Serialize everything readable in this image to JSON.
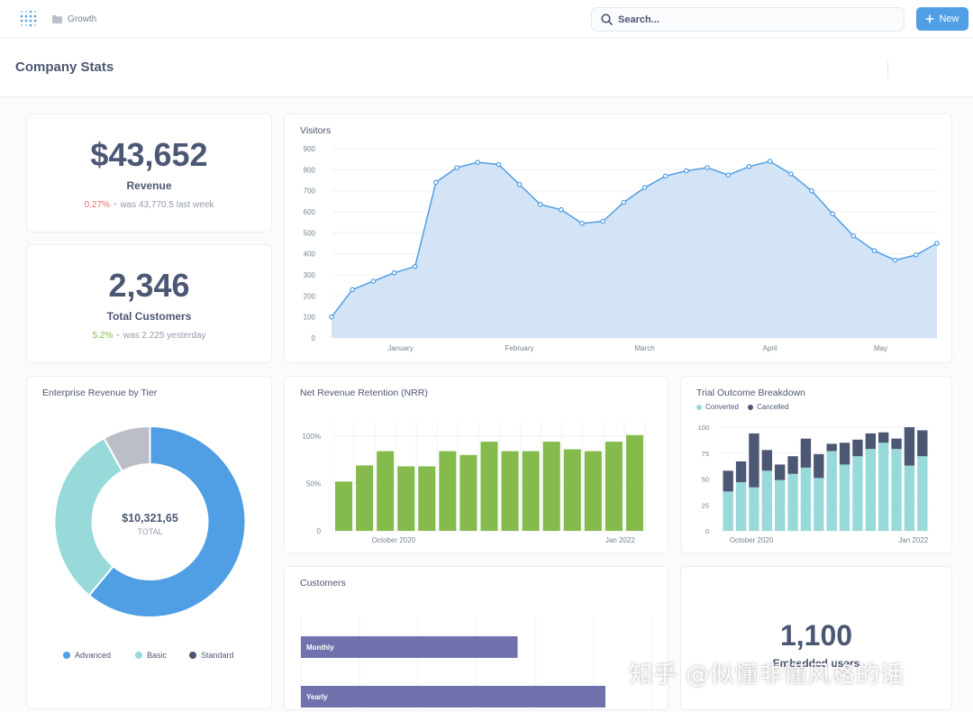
{
  "nav": {
    "breadcrumb": "Growth",
    "search_placeholder": "Search...",
    "new_label": "New"
  },
  "page": {
    "title": "Company Stats"
  },
  "revenue": {
    "value": "$43,652",
    "label": "Revenue",
    "change": "0.27%",
    "compare": "was 43,770.5 last week",
    "change_color": "#ed6e6e"
  },
  "customers_total": {
    "value": "2,346",
    "label": "Total Customers",
    "change": "5.2%",
    "compare": "was 2.225 yesterday",
    "change_color": "#84bb4c"
  },
  "enterprise": {
    "title": "Enterprise Revenue by Tier",
    "center_value": "$10,321,65",
    "center_label": "TOTAL",
    "legend": [
      "Advanced",
      "Basic",
      "Standard"
    ]
  },
  "visitors": {
    "title": "Visitors"
  },
  "nrr": {
    "title": "Net Revenue Retention (NRR)"
  },
  "trial": {
    "title": "Trial Outcome Breakdown",
    "legend": [
      "Converted",
      "Cancelled"
    ]
  },
  "customers_chart": {
    "title": "Customers"
  },
  "embedded": {
    "value": "1,100",
    "label": "Embedded users"
  },
  "watermark": "知乎 @似懂非懂风格的话",
  "colors": {
    "brand": "#509ee3",
    "area_fill": "#d1e3f7",
    "area_line": "#509ee3",
    "nrr_bar": "#84bb4c",
    "converted": "#98d9d9",
    "cancelled": "#4c5773",
    "customers_bar": "#7172ad",
    "advanced": "#509ee3",
    "basic": "#98d9d9",
    "standard": "#bbbec7"
  },
  "chart_data": [
    {
      "type": "area",
      "name": "visitors",
      "title": "Visitors",
      "x_tick_labels": [
        "January",
        "February",
        "March",
        "April",
        "May"
      ],
      "y_ticks": [
        "0",
        "100",
        "200",
        "300",
        "400",
        "500",
        "600",
        "700",
        "800",
        "900"
      ],
      "ylim": [
        0,
        900
      ],
      "grid": true,
      "values": [
        100,
        230,
        270,
        310,
        340,
        740,
        810,
        835,
        825,
        730,
        635,
        610,
        545,
        555,
        645,
        715,
        770,
        795,
        810,
        775,
        815,
        840,
        780,
        700,
        590,
        485,
        415,
        370,
        395,
        450
      ]
    },
    {
      "type": "bar",
      "name": "nrr",
      "title": "Net Revenue Retention (NRR)",
      "x_tick_labels": [
        "October 2020",
        "Jan 2022"
      ],
      "y_ticks": [
        "0",
        "50%",
        "100%"
      ],
      "ylim": [
        0,
        115
      ],
      "grid": true,
      "values": [
        52,
        69,
        84,
        68,
        68,
        84,
        80,
        94,
        84,
        84,
        94,
        86,
        84,
        94,
        101
      ]
    },
    {
      "type": "bar",
      "name": "trial",
      "stacked": true,
      "title": "Trial Outcome Breakdown",
      "x_tick_labels": [
        "October 2020",
        "Jan 2022"
      ],
      "y_ticks": [
        "0",
        "25",
        "50",
        "75",
        "100"
      ],
      "ylim": [
        0,
        100
      ],
      "grid": true,
      "series": [
        {
          "name": "Converted",
          "values": [
            38,
            47,
            42,
            58,
            49,
            55,
            61,
            51,
            77,
            64,
            72,
            79,
            85,
            79,
            63,
            72
          ]
        },
        {
          "name": "Cancelled",
          "values": [
            20,
            20,
            52,
            20,
            15,
            17,
            28,
            23,
            7,
            21,
            16,
            15,
            10,
            10,
            37,
            25
          ]
        }
      ]
    },
    {
      "type": "bar",
      "name": "customers",
      "orientation": "horizontal",
      "title": "Customers",
      "categories": [
        "Monthly",
        "Yearly"
      ],
      "xlim": [
        0,
        6
      ],
      "grid": true,
      "values": [
        3.7,
        5.2
      ]
    },
    {
      "type": "pie",
      "name": "enterprise",
      "donut": true,
      "title": "Enterprise Revenue by Tier",
      "categories": [
        "Advanced",
        "Basic",
        "Standard"
      ],
      "values": [
        61,
        31,
        8
      ]
    }
  ]
}
